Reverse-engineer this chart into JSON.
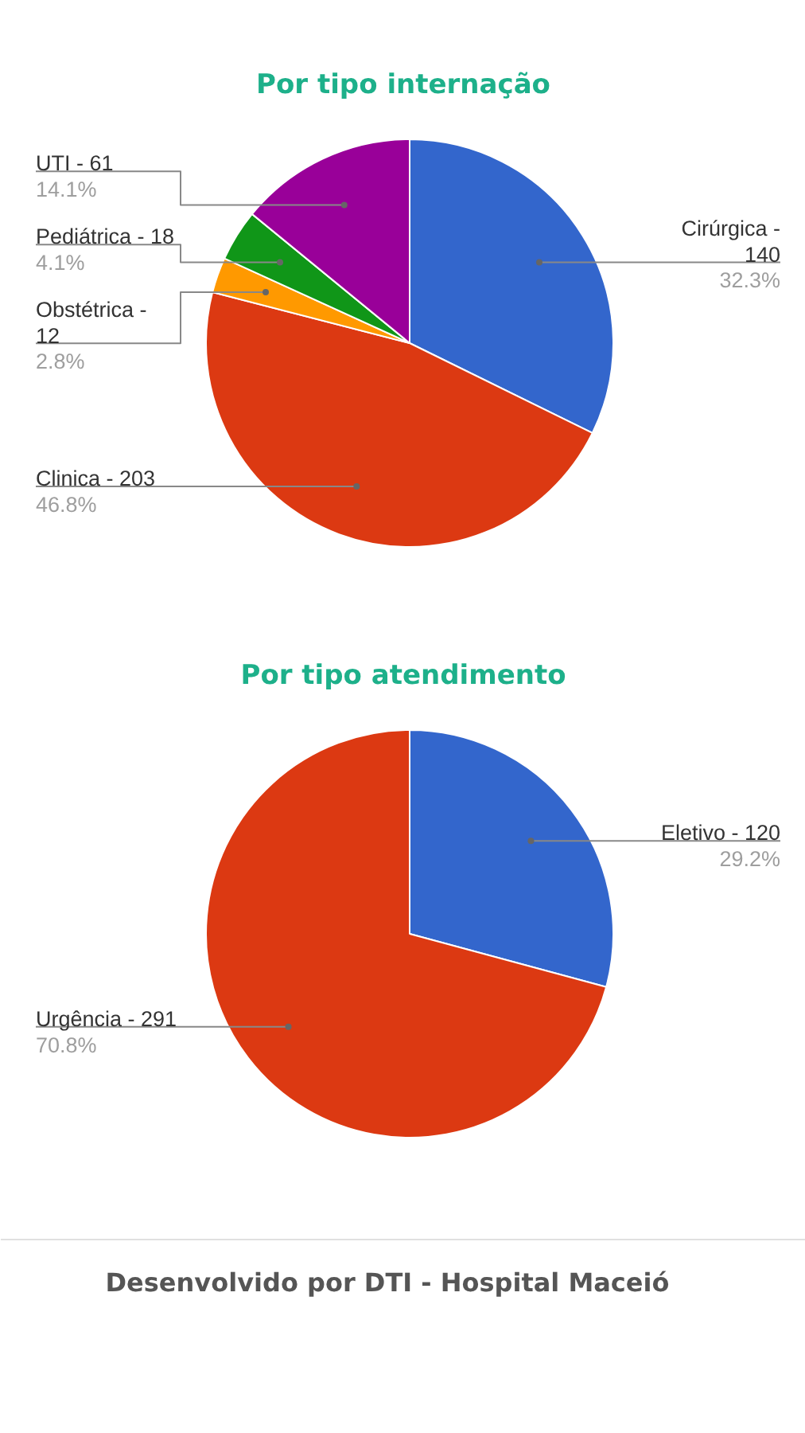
{
  "chart_data": [
    {
      "type": "pie",
      "title": "Por tipo internação",
      "categories": [
        "Cirúrgica -\n140",
        "Clinica - 203",
        "Obstétrica -\n12",
        "Pediátrica - 18",
        "UTI - 61"
      ],
      "values": [
        32.3,
        46.8,
        2.8,
        4.1,
        14.1
      ],
      "colors": [
        "#3366cc",
        "#dc3912",
        "#ff9900",
        "#109618",
        "#990099"
      ],
      "value_labels": [
        "32.3%",
        "46.8%",
        "2.8%",
        "4.1%",
        "14.1%"
      ]
    },
    {
      "type": "pie",
      "title": "Por tipo atendimento",
      "categories": [
        "Eletivo - 120",
        "Urgência - 291"
      ],
      "values": [
        29.2,
        70.8
      ],
      "colors": [
        "#3366cc",
        "#dc3912"
      ],
      "value_labels": [
        "29.2%",
        "70.8%"
      ],
      "annotations": [
        "Desenvolvido por DTI - Hospital Maceió"
      ]
    }
  ]
}
